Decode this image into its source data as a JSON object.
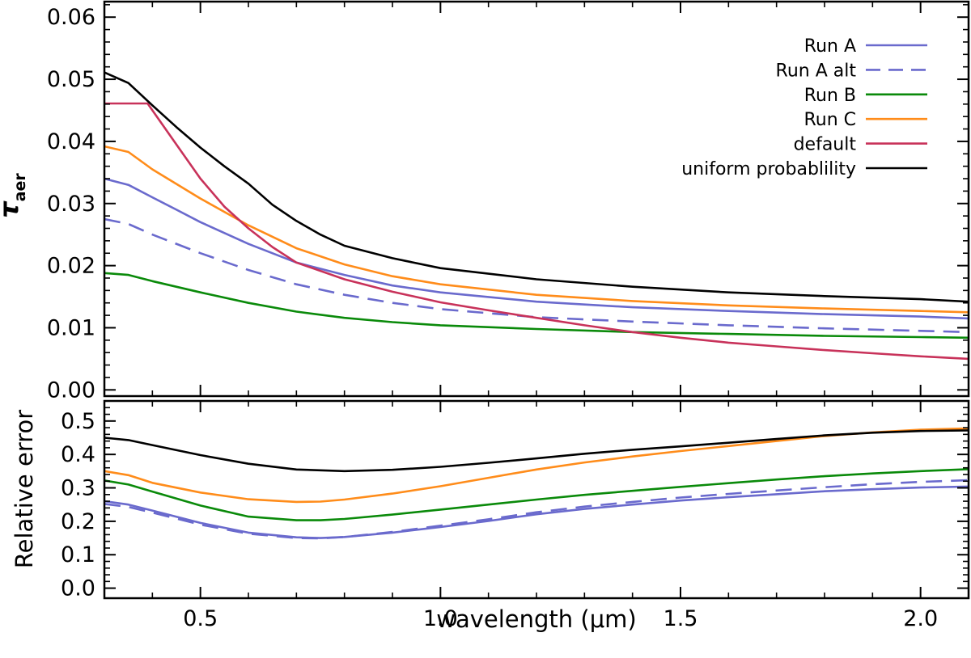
{
  "chart_data": [
    {
      "type": "line",
      "panel": "top",
      "xlabel": "",
      "ylabel": "τ",
      "ylabel_sub": "aer",
      "xlim": [
        0.3,
        2.1
      ],
      "ylim": [
        -0.001,
        0.0625
      ],
      "yticks": [
        0.0,
        0.01,
        0.02,
        0.03,
        0.04,
        0.05,
        0.06
      ],
      "ytick_labels": [
        "0.00",
        "0.01",
        "0.02",
        "0.03",
        "0.04",
        "0.05",
        "0.06"
      ],
      "xticks": [
        0.5,
        1.0,
        1.5,
        2.0
      ],
      "grid": false,
      "legend": "top-right",
      "series": [
        {
          "name": "Run A",
          "color": "#6A6ACD",
          "dash": false,
          "points": [
            [
              0.3,
              0.034
            ],
            [
              0.35,
              0.033
            ],
            [
              0.4,
              0.031
            ],
            [
              0.45,
              0.029
            ],
            [
              0.5,
              0.027
            ],
            [
              0.6,
              0.0235
            ],
            [
              0.7,
              0.0205
            ],
            [
              0.8,
              0.0185
            ],
            [
              0.9,
              0.0168
            ],
            [
              1.0,
              0.0157
            ],
            [
              1.2,
              0.0142
            ],
            [
              1.4,
              0.0133
            ],
            [
              1.6,
              0.0127
            ],
            [
              1.8,
              0.0122
            ],
            [
              2.0,
              0.0118
            ],
            [
              2.1,
              0.0115
            ]
          ]
        },
        {
          "name": "Run A alt",
          "color": "#6A6ACD",
          "dash": true,
          "points": [
            [
              0.3,
              0.0275
            ],
            [
              0.35,
              0.0267
            ],
            [
              0.4,
              0.025
            ],
            [
              0.5,
              0.022
            ],
            [
              0.6,
              0.0193
            ],
            [
              0.7,
              0.017
            ],
            [
              0.8,
              0.0153
            ],
            [
              0.9,
              0.014
            ],
            [
              1.0,
              0.013
            ],
            [
              1.2,
              0.0117
            ],
            [
              1.4,
              0.011
            ],
            [
              1.6,
              0.0104
            ],
            [
              1.8,
              0.0099
            ],
            [
              2.0,
              0.0095
            ],
            [
              2.1,
              0.0093
            ]
          ]
        },
        {
          "name": "Run B",
          "color": "#0A8A0A",
          "dash": false,
          "points": [
            [
              0.3,
              0.0188
            ],
            [
              0.35,
              0.0185
            ],
            [
              0.4,
              0.0175
            ],
            [
              0.5,
              0.0157
            ],
            [
              0.6,
              0.014
            ],
            [
              0.7,
              0.0126
            ],
            [
              0.8,
              0.0116
            ],
            [
              0.9,
              0.0109
            ],
            [
              1.0,
              0.0104
            ],
            [
              1.2,
              0.0098
            ],
            [
              1.4,
              0.0093
            ],
            [
              1.6,
              0.009
            ],
            [
              1.8,
              0.0087
            ],
            [
              2.0,
              0.0085
            ],
            [
              2.1,
              0.0084
            ]
          ]
        },
        {
          "name": "Run C",
          "color": "#FF8C1A",
          "dash": false,
          "points": [
            [
              0.3,
              0.0392
            ],
            [
              0.35,
              0.0383
            ],
            [
              0.4,
              0.0355
            ],
            [
              0.5,
              0.0308
            ],
            [
              0.6,
              0.0265
            ],
            [
              0.7,
              0.0228
            ],
            [
              0.8,
              0.0202
            ],
            [
              0.9,
              0.0183
            ],
            [
              1.0,
              0.017
            ],
            [
              1.2,
              0.0153
            ],
            [
              1.4,
              0.0143
            ],
            [
              1.6,
              0.0136
            ],
            [
              1.8,
              0.0131
            ],
            [
              2.0,
              0.0127
            ],
            [
              2.1,
              0.0125
            ]
          ]
        },
        {
          "name": "default",
          "color": "#C8325A",
          "dash": false,
          "points": [
            [
              0.3,
              0.0461
            ],
            [
              0.39,
              0.0461
            ],
            [
              0.45,
              0.0395
            ],
            [
              0.5,
              0.034
            ],
            [
              0.55,
              0.0295
            ],
            [
              0.6,
              0.026
            ],
            [
              0.65,
              0.023
            ],
            [
              0.7,
              0.0205
            ],
            [
              0.8,
              0.0178
            ],
            [
              0.9,
              0.0158
            ],
            [
              1.0,
              0.0141
            ],
            [
              1.1,
              0.0128
            ],
            [
              1.2,
              0.0116
            ],
            [
              1.3,
              0.0104
            ],
            [
              1.4,
              0.0093
            ],
            [
              1.5,
              0.0084
            ],
            [
              1.6,
              0.0076
            ],
            [
              1.7,
              0.007
            ],
            [
              1.8,
              0.0064
            ],
            [
              1.9,
              0.0059
            ],
            [
              2.0,
              0.0054
            ],
            [
              2.1,
              0.005
            ]
          ]
        },
        {
          "name": "uniform probablility",
          "color": "#000000",
          "dash": false,
          "points": [
            [
              0.3,
              0.0511
            ],
            [
              0.35,
              0.0494
            ],
            [
              0.4,
              0.0458
            ],
            [
              0.45,
              0.0423
            ],
            [
              0.5,
              0.039
            ],
            [
              0.55,
              0.036
            ],
            [
              0.6,
              0.0332
            ],
            [
              0.65,
              0.0298
            ],
            [
              0.7,
              0.0272
            ],
            [
              0.75,
              0.025
            ],
            [
              0.8,
              0.0232
            ],
            [
              0.9,
              0.0212
            ],
            [
              1.0,
              0.0196
            ],
            [
              1.2,
              0.0178
            ],
            [
              1.4,
              0.0166
            ],
            [
              1.6,
              0.0157
            ],
            [
              1.8,
              0.0151
            ],
            [
              2.0,
              0.0146
            ],
            [
              2.1,
              0.0142
            ]
          ]
        }
      ]
    },
    {
      "type": "line",
      "panel": "bottom",
      "xlabel": "wavelength (μm)",
      "ylabel": "Relative error",
      "xlim": [
        0.3,
        2.1
      ],
      "ylim": [
        -0.03,
        0.56
      ],
      "yticks": [
        0.0,
        0.1,
        0.2,
        0.3,
        0.4,
        0.5
      ],
      "ytick_labels": [
        "0.0",
        "0.1",
        "0.2",
        "0.3",
        "0.4",
        "0.5"
      ],
      "xticks": [
        0.5,
        1.0,
        1.5,
        2.0
      ],
      "xtick_labels": [
        "0.5",
        "1.0",
        "1.5",
        "2.0"
      ],
      "grid": false,
      "series": [
        {
          "name": "Run A",
          "color": "#6A6ACD",
          "dash": false,
          "points": [
            [
              0.3,
              0.26
            ],
            [
              0.35,
              0.25
            ],
            [
              0.4,
              0.232
            ],
            [
              0.5,
              0.195
            ],
            [
              0.6,
              0.166
            ],
            [
              0.7,
              0.152
            ],
            [
              0.75,
              0.15
            ],
            [
              0.8,
              0.153
            ],
            [
              0.9,
              0.166
            ],
            [
              1.0,
              0.183
            ],
            [
              1.1,
              0.201
            ],
            [
              1.2,
              0.221
            ],
            [
              1.3,
              0.237
            ],
            [
              1.4,
              0.25
            ],
            [
              1.5,
              0.262
            ],
            [
              1.6,
              0.272
            ],
            [
              1.7,
              0.281
            ],
            [
              1.8,
              0.29
            ],
            [
              1.9,
              0.296
            ],
            [
              2.0,
              0.301
            ],
            [
              2.1,
              0.304
            ]
          ]
        },
        {
          "name": "Run A alt",
          "color": "#6A6ACD",
          "dash": true,
          "points": [
            [
              0.3,
              0.252
            ],
            [
              0.35,
              0.243
            ],
            [
              0.4,
              0.226
            ],
            [
              0.5,
              0.19
            ],
            [
              0.6,
              0.163
            ],
            [
              0.7,
              0.15
            ],
            [
              0.75,
              0.149
            ],
            [
              0.8,
              0.153
            ],
            [
              0.9,
              0.168
            ],
            [
              1.0,
              0.187
            ],
            [
              1.1,
              0.206
            ],
            [
              1.2,
              0.227
            ],
            [
              1.3,
              0.244
            ],
            [
              1.4,
              0.258
            ],
            [
              1.5,
              0.271
            ],
            [
              1.6,
              0.282
            ],
            [
              1.7,
              0.292
            ],
            [
              1.8,
              0.302
            ],
            [
              1.9,
              0.311
            ],
            [
              2.0,
              0.318
            ],
            [
              2.1,
              0.323
            ]
          ]
        },
        {
          "name": "Run B",
          "color": "#0A8A0A",
          "dash": false,
          "points": [
            [
              0.3,
              0.322
            ],
            [
              0.35,
              0.31
            ],
            [
              0.4,
              0.289
            ],
            [
              0.5,
              0.247
            ],
            [
              0.6,
              0.214
            ],
            [
              0.7,
              0.203
            ],
            [
              0.75,
              0.203
            ],
            [
              0.8,
              0.207
            ],
            [
              0.9,
              0.22
            ],
            [
              1.0,
              0.235
            ],
            [
              1.1,
              0.25
            ],
            [
              1.2,
              0.265
            ],
            [
              1.3,
              0.279
            ],
            [
              1.4,
              0.291
            ],
            [
              1.5,
              0.303
            ],
            [
              1.6,
              0.314
            ],
            [
              1.7,
              0.325
            ],
            [
              1.8,
              0.335
            ],
            [
              1.9,
              0.343
            ],
            [
              2.0,
              0.35
            ],
            [
              2.1,
              0.356
            ]
          ]
        },
        {
          "name": "Run C",
          "color": "#FF8C1A",
          "dash": false,
          "points": [
            [
              0.3,
              0.35
            ],
            [
              0.35,
              0.338
            ],
            [
              0.4,
              0.315
            ],
            [
              0.5,
              0.286
            ],
            [
              0.6,
              0.266
            ],
            [
              0.7,
              0.258
            ],
            [
              0.75,
              0.259
            ],
            [
              0.8,
              0.265
            ],
            [
              0.9,
              0.283
            ],
            [
              1.0,
              0.305
            ],
            [
              1.1,
              0.33
            ],
            [
              1.2,
              0.355
            ],
            [
              1.3,
              0.376
            ],
            [
              1.4,
              0.394
            ],
            [
              1.5,
              0.41
            ],
            [
              1.6,
              0.425
            ],
            [
              1.7,
              0.44
            ],
            [
              1.8,
              0.455
            ],
            [
              1.9,
              0.466
            ],
            [
              2.0,
              0.474
            ],
            [
              2.1,
              0.478
            ]
          ]
        },
        {
          "name": "uniform probablility",
          "color": "#000000",
          "dash": false,
          "points": [
            [
              0.3,
              0.45
            ],
            [
              0.35,
              0.443
            ],
            [
              0.4,
              0.428
            ],
            [
              0.5,
              0.398
            ],
            [
              0.6,
              0.372
            ],
            [
              0.7,
              0.355
            ],
            [
              0.8,
              0.35
            ],
            [
              0.9,
              0.354
            ],
            [
              1.0,
              0.363
            ],
            [
              1.1,
              0.375
            ],
            [
              1.2,
              0.388
            ],
            [
              1.3,
              0.402
            ],
            [
              1.4,
              0.414
            ],
            [
              1.5,
              0.424
            ],
            [
              1.6,
              0.435
            ],
            [
              1.7,
              0.446
            ],
            [
              1.8,
              0.457
            ],
            [
              1.9,
              0.465
            ],
            [
              2.0,
              0.47
            ],
            [
              2.1,
              0.472
            ]
          ]
        }
      ]
    }
  ]
}
